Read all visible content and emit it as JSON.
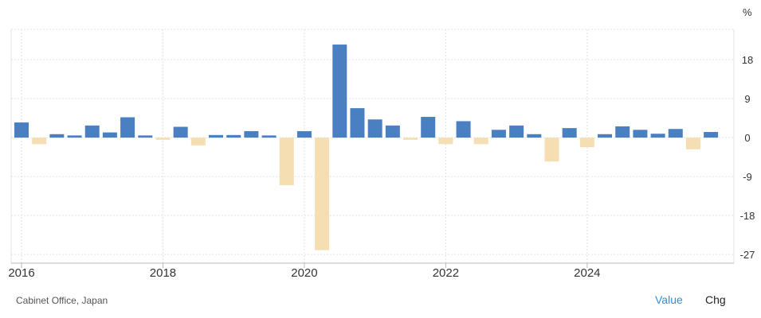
{
  "source": "Cabinet Office, Japan",
  "controls": {
    "value_label": "Value",
    "chg_label": "Chg"
  },
  "colors": {
    "positive": "#4a7fc1",
    "negative": "#f5deb1",
    "grid": "#e3e3e3",
    "axis": "#bbbbbb"
  },
  "chart_data": {
    "type": "bar",
    "unit": "%",
    "x_tick_labels": [
      "2016",
      "2018",
      "2020",
      "2022",
      "2024"
    ],
    "y_tick_labels": [
      "18",
      "9",
      "0",
      "-9",
      "-18",
      "-27"
    ],
    "y_ticks": [
      18,
      9,
      0,
      -9,
      -18,
      -27
    ],
    "ylim": [
      -29,
      25
    ],
    "xlim": [
      2016.0,
      2025.94
    ],
    "grid": true,
    "x": [
      "2016-Q1",
      "2016-Q2",
      "2016-Q3",
      "2016-Q4",
      "2017-Q1",
      "2017-Q2",
      "2017-Q3",
      "2017-Q4",
      "2018-Q1",
      "2018-Q2",
      "2018-Q3",
      "2018-Q4",
      "2019-Q1",
      "2019-Q2",
      "2019-Q3",
      "2019-Q4",
      "2020-Q1",
      "2020-Q2",
      "2020-Q3",
      "2020-Q4",
      "2021-Q1",
      "2021-Q2",
      "2021-Q3",
      "2021-Q4",
      "2022-Q1",
      "2022-Q2",
      "2022-Q3",
      "2022-Q4",
      "2023-Q1",
      "2023-Q2",
      "2023-Q3",
      "2023-Q4",
      "2024-Q1",
      "2024-Q2",
      "2024-Q3",
      "2024-Q4",
      "2025-Q1",
      "2025-Q2",
      "2025-Q3",
      "2025-Q4"
    ],
    "x_positions": [
      2016.0,
      2016.25,
      2016.5,
      2016.75,
      2017.0,
      2017.25,
      2017.5,
      2017.75,
      2018.0,
      2018.25,
      2018.5,
      2018.75,
      2019.0,
      2019.25,
      2019.5,
      2019.75,
      2020.0,
      2020.25,
      2020.5,
      2020.75,
      2021.0,
      2021.25,
      2021.5,
      2021.75,
      2022.0,
      2022.25,
      2022.5,
      2022.75,
      2023.0,
      2023.25,
      2023.5,
      2023.75,
      2024.0,
      2024.25,
      2024.5,
      2024.75,
      2025.0,
      2025.25,
      2025.5,
      2025.75
    ],
    "values": [
      3.5,
      -1.5,
      0.8,
      0.5,
      2.8,
      1.2,
      4.7,
      0.5,
      -0.5,
      2.5,
      -1.8,
      0.6,
      0.6,
      1.5,
      0.5,
      -11.0,
      1.5,
      -26.0,
      21.5,
      6.8,
      4.2,
      2.8,
      -0.5,
      4.8,
      -1.5,
      3.8,
      -1.5,
      1.8,
      2.8,
      0.8,
      -5.5,
      2.2,
      -2.2,
      0.8,
      2.6,
      1.8,
      0.9,
      2.0,
      -2.7,
      1.3
    ]
  }
}
